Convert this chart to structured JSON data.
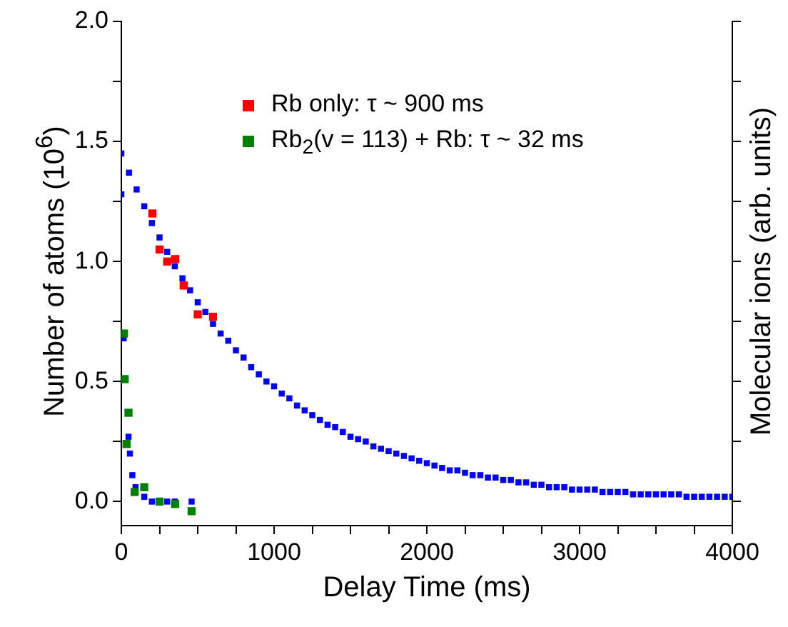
{
  "chart_data": {
    "type": "scatter",
    "xlabel": "Delay Time (ms)",
    "ylabel": "Number of atoms (10$^{6}$)",
    "y2label": "Molecular ions (arb. units)",
    "xlim": [
      0,
      4000
    ],
    "ylim": [
      -0.1,
      2.0
    ],
    "xticks": [
      0,
      {
        "value": 250,
        "label": null
      },
      {
        "value": 500,
        "label": null
      },
      {
        "value": 750,
        "label": null
      },
      1000,
      {
        "value": 1250,
        "label": null
      },
      {
        "value": 1500,
        "label": null
      },
      {
        "value": 1750,
        "label": null
      },
      2000,
      {
        "value": 2250,
        "label": null
      },
      {
        "value": 2500,
        "label": null
      },
      {
        "value": 2750,
        "label": null
      },
      3000,
      {
        "value": 3250,
        "label": null
      },
      {
        "value": 3500,
        "label": null
      },
      {
        "value": 3750,
        "label": null
      },
      4000
    ],
    "yticks": [
      {
        "value": 0,
        "label": "0.0"
      },
      {
        "value": 0.25,
        "label": null
      },
      {
        "value": 0.5,
        "label": "0.5"
      },
      {
        "value": 0.75,
        "label": null
      },
      {
        "value": 1,
        "label": "1.0"
      },
      {
        "value": 1.25,
        "label": null
      },
      {
        "value": 1.5,
        "label": "1.5"
      },
      {
        "value": 1.75,
        "label": null
      },
      {
        "value": 2,
        "label": "2.0"
      }
    ],
    "grid": false,
    "legend": "top",
    "marker": "square",
    "series": [
      {
        "name": "Rb only: τ ~ 900 ms",
        "color": "#ff0000",
        "x": [
          203,
          250,
          300,
          352,
          408,
          500,
          600
        ],
        "values": [
          1.2,
          1.05,
          1.0,
          1.01,
          0.9,
          0.78,
          0.77
        ]
      },
      {
        "name": "Rb$_{2}$(v = 113) + Rb: τ ~ 32 ms",
        "color": "#008000",
        "x": [
          17,
          22,
          34,
          47,
          87,
          150,
          250,
          352,
          460
        ],
        "values": [
          0.7,
          0.51,
          0.24,
          0.37,
          0.04,
          0.06,
          0.0,
          -0.01,
          -0.04
        ]
      },
      {
        "color": "#0000ff",
        "x": [
          0,
          15,
          40,
          47,
          56,
          72,
          93,
          150,
          200,
          250,
          300,
          350,
          460
        ],
        "values": [
          1.28,
          0.68,
          null,
          0.27,
          0.2,
          0.11,
          0.06,
          0.02,
          0.0,
          null,
          0.0,
          0.0,
          0.0
        ]
      },
      {
        "color": "#0000ff",
        "x": [
          0,
          50,
          100,
          150,
          200,
          250,
          300,
          350,
          400,
          450,
          500,
          550,
          600,
          650,
          700,
          750,
          800,
          850,
          900,
          950,
          1000,
          1050,
          1100,
          1150,
          1200,
          1250,
          1300,
          1350,
          1400,
          1450,
          1500,
          1550,
          1600,
          1650,
          1700,
          1750,
          1800,
          1850,
          1900,
          1950,
          2000,
          2050,
          2100,
          2150,
          2200,
          2250,
          2300,
          2350,
          2400,
          2450,
          2500,
          2550,
          2600,
          2650,
          2700,
          2750,
          2800,
          2850,
          2900,
          2950,
          3000,
          3050,
          3100,
          3150,
          3200,
          3250,
          3300,
          3350,
          3400,
          3450,
          3500,
          3550,
          3600,
          3650,
          3700,
          3750,
          3800,
          3850,
          3900,
          3950,
          4000
        ],
        "values": [
          1.45,
          1.37,
          1.3,
          1.23,
          1.16,
          1.1,
          1.04,
          0.98,
          0.93,
          0.88,
          0.83,
          0.79,
          0.74,
          0.7,
          0.67,
          0.63,
          0.6,
          0.56,
          0.53,
          0.5,
          0.48,
          0.45,
          0.43,
          0.4,
          0.38,
          0.36,
          0.34,
          0.32,
          0.31,
          0.29,
          0.27,
          0.26,
          0.25,
          0.23,
          0.22,
          0.21,
          0.2,
          0.19,
          0.18,
          0.17,
          0.16,
          0.15,
          0.14,
          0.13,
          0.13,
          0.12,
          0.11,
          0.11,
          0.1,
          0.1,
          0.09,
          0.09,
          0.08,
          0.08,
          0.07,
          0.07,
          0.06,
          0.06,
          0.06,
          0.05,
          0.05,
          0.05,
          0.05,
          0.04,
          0.04,
          0.04,
          0.04,
          0.03,
          0.03,
          0.03,
          0.03,
          0.03,
          0.03,
          0.03,
          0.02,
          0.02,
          0.02,
          0.02,
          0.02,
          0.02,
          0.02
        ]
      }
    ]
  }
}
